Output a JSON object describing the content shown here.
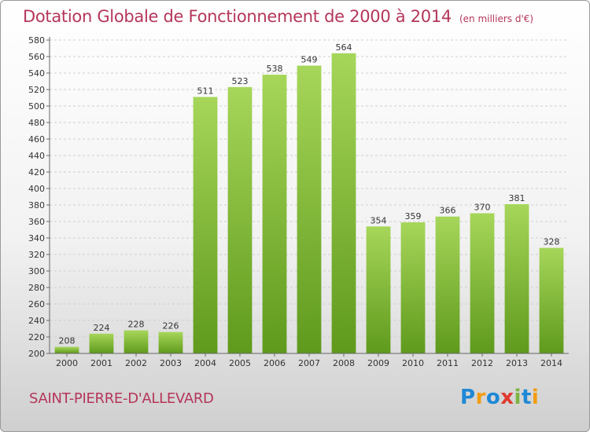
{
  "title": "Dotation Globale de Fonctionnement de 2000 à 2014",
  "subtitle": "(en milliers d'€)",
  "commune": "SAINT-PIERRE-D'ALLEVARD",
  "logo": {
    "text": "Proxiti"
  },
  "colors": {
    "title": "#b5365a",
    "bar_top": "#a6d65a",
    "bar_bottom": "#5f9a1c",
    "grid": "#cfcfcf"
  },
  "chart_data": {
    "type": "bar",
    "title": "Dotation Globale de Fonctionnement de 2000 à 2014",
    "subtitle": "(en milliers d'€)",
    "xlabel": "",
    "ylabel": "",
    "categories": [
      "2000",
      "2001",
      "2002",
      "2003",
      "2004",
      "2005",
      "2006",
      "2007",
      "2008",
      "2009",
      "2010",
      "2011",
      "2012",
      "2013",
      "2014"
    ],
    "values": [
      208,
      224,
      228,
      226,
      511,
      523,
      538,
      549,
      564,
      354,
      359,
      366,
      370,
      381,
      328
    ],
    "ylim": [
      200,
      580
    ],
    "ytick_step": 20,
    "grid": true,
    "legend": "none"
  }
}
